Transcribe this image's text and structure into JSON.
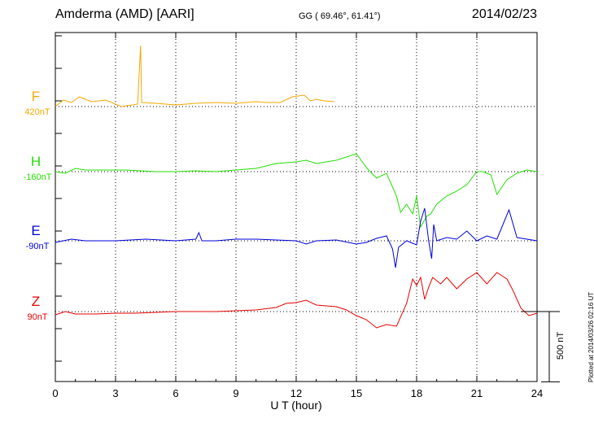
{
  "header": {
    "title": "Amderma (AMD)  [AARI]",
    "coords": "GG ( 69.46°,  61.41°)",
    "date": "2014/02/23"
  },
  "plotted_note": "Plotted at 2014/03/26 02:16 UT",
  "chart_data": {
    "type": "line",
    "xlabel": "U T (hour)",
    "xlim": [
      0,
      24
    ],
    "xticks": [
      0,
      3,
      6,
      9,
      12,
      15,
      18,
      21,
      24
    ],
    "scale_bar": {
      "label": "500 nT",
      "value_nT": 500
    },
    "grid": true,
    "series": [
      {
        "name": "F",
        "base_label": "420nT",
        "color": "#f5a800",
        "points": [
          [
            0,
            0
          ],
          [
            0.4,
            -8
          ],
          [
            0.8,
            -5
          ],
          [
            1.2,
            -12
          ],
          [
            1.8,
            -6
          ],
          [
            2.5,
            -8
          ],
          [
            3.3,
            0
          ],
          [
            4.1,
            -3
          ],
          [
            4.25,
            -75
          ],
          [
            4.3,
            -5
          ],
          [
            5,
            -4
          ],
          [
            6,
            -2
          ],
          [
            7,
            -4
          ],
          [
            8,
            -5
          ],
          [
            9,
            -4
          ],
          [
            10,
            -6
          ],
          [
            10.5,
            -5
          ],
          [
            11.2,
            -5
          ],
          [
            11.8,
            -12
          ],
          [
            12.4,
            -14
          ],
          [
            12.7,
            -7
          ],
          [
            13,
            -9
          ],
          [
            13.4,
            -7
          ],
          [
            13.9,
            -6
          ]
        ]
      },
      {
        "name": "H",
        "base_label": "-160nT",
        "color": "#22e000",
        "points": [
          [
            0,
            0
          ],
          [
            0.5,
            2
          ],
          [
            1,
            -4
          ],
          [
            1.5,
            -2
          ],
          [
            2.5,
            -2
          ],
          [
            3.5,
            -2
          ],
          [
            5,
            0
          ],
          [
            6,
            0
          ],
          [
            7,
            -1
          ],
          [
            8,
            0
          ],
          [
            9,
            -2
          ],
          [
            10,
            -4
          ],
          [
            11,
            -10
          ],
          [
            12,
            -12
          ],
          [
            12.5,
            -14
          ],
          [
            13,
            -10
          ],
          [
            14,
            -14
          ],
          [
            14.5,
            -18
          ],
          [
            15,
            -22
          ],
          [
            15.5,
            -5
          ],
          [
            16,
            8
          ],
          [
            16.5,
            2
          ],
          [
            17,
            30
          ],
          [
            17.2,
            50
          ],
          [
            17.5,
            40
          ],
          [
            17.8,
            52
          ],
          [
            18,
            30
          ],
          [
            18.2,
            68
          ],
          [
            18.5,
            55
          ],
          [
            18.7,
            52
          ],
          [
            19,
            40
          ],
          [
            19.5,
            30
          ],
          [
            20,
            24
          ],
          [
            20.5,
            16
          ],
          [
            21,
            0
          ],
          [
            21.3,
            0
          ],
          [
            21.7,
            4
          ],
          [
            22,
            28
          ],
          [
            22.5,
            10
          ],
          [
            23,
            2
          ],
          [
            23.5,
            -2
          ],
          [
            24,
            0
          ]
        ]
      },
      {
        "name": "E",
        "base_label": "-90nT",
        "color": "#0000dd",
        "points": [
          [
            0,
            2
          ],
          [
            0.8,
            -2
          ],
          [
            1.5,
            0
          ],
          [
            3,
            0
          ],
          [
            4.5,
            -2
          ],
          [
            6,
            0
          ],
          [
            7,
            -2
          ],
          [
            7.15,
            -10
          ],
          [
            7.3,
            0
          ],
          [
            8,
            0
          ],
          [
            9,
            -2
          ],
          [
            10,
            -2
          ],
          [
            11,
            -1
          ],
          [
            12,
            0
          ],
          [
            12.5,
            4
          ],
          [
            13,
            0
          ],
          [
            14,
            -1
          ],
          [
            15,
            4
          ],
          [
            15.5,
            2
          ],
          [
            16,
            -3
          ],
          [
            16.5,
            -6
          ],
          [
            16.8,
            10
          ],
          [
            16.95,
            33
          ],
          [
            17.1,
            8
          ],
          [
            17.5,
            0
          ],
          [
            18,
            5
          ],
          [
            18.2,
            -24
          ],
          [
            18.4,
            -40
          ],
          [
            18.6,
            0
          ],
          [
            18.75,
            22
          ],
          [
            18.85,
            -20
          ],
          [
            19,
            0
          ],
          [
            19.5,
            -4
          ],
          [
            20,
            -2
          ],
          [
            20.5,
            -12
          ],
          [
            21,
            0
          ],
          [
            21.5,
            -6
          ],
          [
            22,
            -2
          ],
          [
            22.3,
            -20
          ],
          [
            22.6,
            -38
          ],
          [
            23,
            -4
          ],
          [
            24,
            0
          ]
        ]
      },
      {
        "name": "Z",
        "base_label": "90nT",
        "color": "#e60000",
        "points": [
          [
            0,
            4
          ],
          [
            0.5,
            0
          ],
          [
            1,
            3
          ],
          [
            2,
            3
          ],
          [
            3,
            2
          ],
          [
            4,
            2
          ],
          [
            5,
            1
          ],
          [
            6,
            0
          ],
          [
            7,
            0
          ],
          [
            8,
            0
          ],
          [
            9,
            -1
          ],
          [
            10,
            -2
          ],
          [
            11,
            -5
          ],
          [
            11.5,
            -10
          ],
          [
            12,
            -11
          ],
          [
            12.5,
            -14
          ],
          [
            13,
            -8
          ],
          [
            14,
            -6
          ],
          [
            14.5,
            -2
          ],
          [
            15,
            5
          ],
          [
            15.5,
            10
          ],
          [
            16,
            20
          ],
          [
            16.5,
            16
          ],
          [
            17,
            18
          ],
          [
            17.5,
            -10
          ],
          [
            17.8,
            -40
          ],
          [
            18,
            -32
          ],
          [
            18.2,
            -42
          ],
          [
            18.4,
            -15
          ],
          [
            18.6,
            -30
          ],
          [
            18.8,
            -42
          ],
          [
            19.2,
            -34
          ],
          [
            19.5,
            -42
          ],
          [
            20,
            -28
          ],
          [
            20.5,
            -40
          ],
          [
            21,
            -48
          ],
          [
            21.5,
            -34
          ],
          [
            22,
            -48
          ],
          [
            22.5,
            -40
          ],
          [
            22.8,
            -26
          ],
          [
            23.2,
            -4
          ],
          [
            23.6,
            5
          ],
          [
            24,
            2
          ]
        ]
      }
    ]
  }
}
